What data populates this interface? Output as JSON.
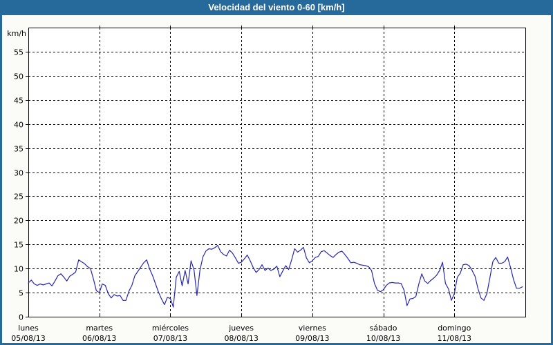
{
  "window": {
    "title": "Velocidad del viento 0-60 [km/h]"
  },
  "colors": {
    "frame": "#26699b",
    "titlebar_bg": "#26699b",
    "titlebar_text": "#ffffff",
    "page_bg": "#fbfbf8",
    "plot_bg": "#ffffff",
    "grid": "#000000",
    "series_line": "#2626b0"
  },
  "chart_data": {
    "type": "line",
    "title": "Velocidad del viento 0-60 [km/h]",
    "ylabel": "km/h",
    "xlabel": "",
    "ylim": [
      0,
      60
    ],
    "y_ticks": [
      0,
      5,
      10,
      15,
      20,
      25,
      30,
      35,
      40,
      45,
      50,
      55
    ],
    "grid": "dashed",
    "legend_position": "none",
    "sampling": "hourly",
    "x_days": [
      {
        "name": "lunes",
        "date": "05/08/13"
      },
      {
        "name": "martes",
        "date": "06/08/13"
      },
      {
        "name": "miércoles",
        "date": "07/08/13"
      },
      {
        "name": "jueves",
        "date": "08/08/13"
      },
      {
        "name": "viernes",
        "date": "09/08/13"
      },
      {
        "name": "sábado",
        "date": "10/08/13"
      },
      {
        "name": "domingo",
        "date": "11/08/13"
      }
    ],
    "series": [
      {
        "name": "Velocidad del viento",
        "unit": "km/h",
        "color": "#2626b0",
        "values": [
          7.0,
          7.6,
          6.8,
          6.5,
          6.8,
          6.6,
          6.8,
          7.0,
          6.4,
          7.4,
          8.5,
          8.9,
          8.2,
          7.4,
          8.4,
          8.8,
          9.3,
          11.8,
          11.4,
          11.0,
          10.4,
          10.0,
          7.8,
          5.4,
          5.0,
          6.8,
          6.5,
          4.8,
          3.9,
          4.6,
          4.3,
          4.4,
          3.4,
          3.4,
          5.3,
          6.5,
          8.5,
          9.4,
          10.3,
          11.2,
          11.8,
          9.9,
          8.5,
          6.8,
          5.1,
          3.7,
          2.5,
          4.0,
          3.8,
          2.0,
          8.2,
          9.4,
          6.4,
          9.6,
          6.8,
          11.6,
          9.7,
          4.4,
          9.6,
          12.4,
          13.6,
          14.1,
          14.0,
          14.3,
          14.8,
          13.5,
          12.9,
          12.6,
          13.8,
          13.2,
          12.2,
          11.1,
          11.3,
          12.0,
          12.8,
          11.6,
          10.2,
          9.2,
          9.8,
          10.8,
          9.6,
          10.1,
          9.6,
          9.9,
          10.5,
          8.3,
          9.5,
          10.6,
          9.8,
          11.8,
          14.1,
          13.4,
          13.8,
          14.4,
          12.2,
          11.2,
          11.6,
          12.3,
          12.5,
          13.5,
          13.7,
          13.2,
          12.7,
          12.3,
          12.9,
          13.4,
          13.6,
          12.9,
          12.1,
          11.2,
          11.3,
          11.1,
          10.8,
          10.7,
          10.6,
          10.4,
          9.6,
          6.9,
          5.5,
          5.2,
          5.6,
          6.5,
          7.0,
          7.1,
          7.0,
          7.0,
          6.9,
          5.5,
          2.3,
          3.7,
          3.8,
          4.2,
          6.8,
          8.9,
          7.4,
          6.9,
          7.5,
          8.0,
          8.6,
          9.6,
          11.3,
          6.9,
          5.8,
          3.4,
          4.8,
          8.2,
          9.0,
          10.8,
          10.9,
          10.6,
          9.6,
          8.4,
          5.8,
          3.9,
          3.4,
          4.8,
          8.0,
          11.4,
          12.3,
          11.1,
          11.1,
          11.4,
          12.4,
          10.2,
          7.7,
          5.9,
          5.9,
          6.2
        ]
      }
    ]
  }
}
